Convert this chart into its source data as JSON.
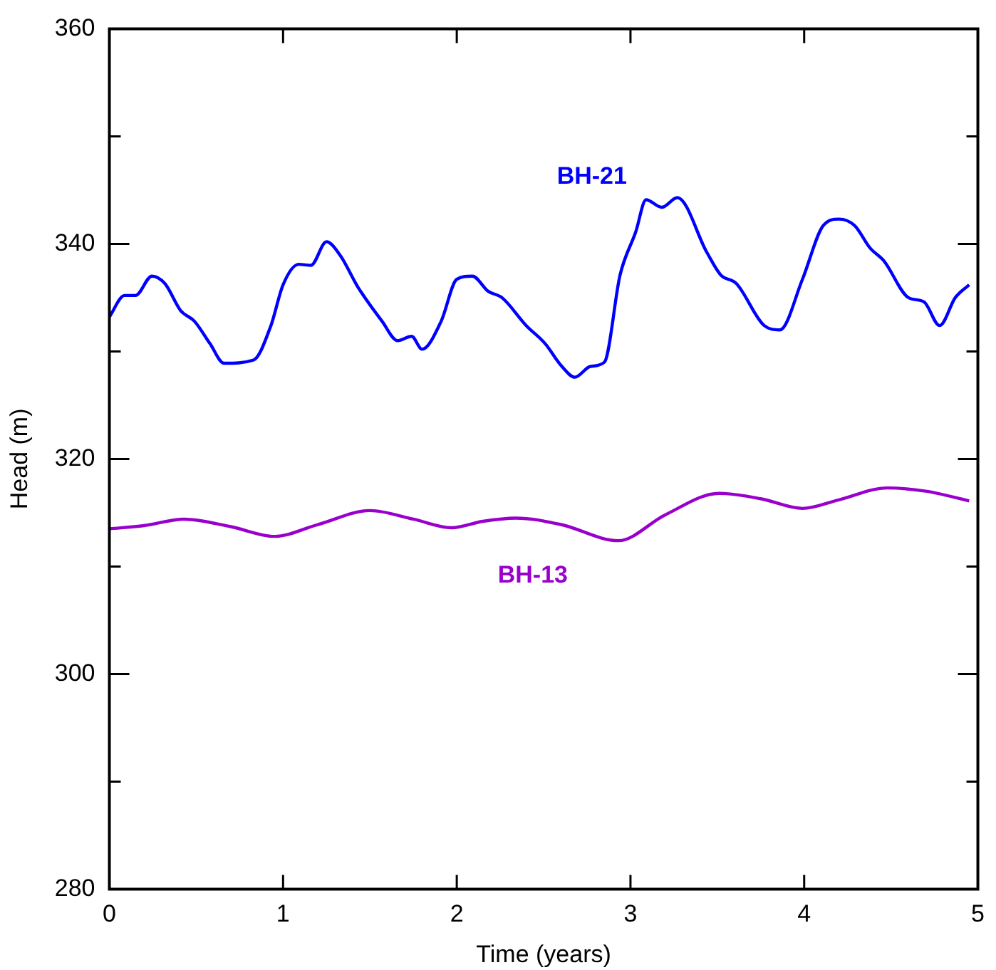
{
  "chart_data": {
    "type": "line",
    "xlabel": "Time (years)",
    "ylabel": "Head (m)",
    "xlim": [
      0,
      5
    ],
    "xticks": [
      0,
      1,
      2,
      3,
      4,
      5
    ],
    "ylim": [
      280,
      360
    ],
    "yticks": [
      280,
      {
        "value": 290,
        "label": null
      },
      300,
      {
        "value": 310,
        "label": null
      },
      320,
      {
        "value": 330,
        "label": null
      },
      340,
      {
        "value": 350,
        "label": null
      },
      360
    ],
    "grid": false,
    "legend": false,
    "marker": "none",
    "line_style": "solid",
    "series": [
      {
        "name": "BH-21",
        "color": "#0000ff",
        "x": [
          0,
          0.087,
          0.15,
          0.245,
          0.32,
          0.41,
          0.49,
          0.58,
          0.66,
          0.83,
          0.93,
          1.0,
          1.09,
          1.16,
          1.25,
          1.33,
          1.43,
          1.57,
          1.66,
          1.74,
          1.8,
          1.91,
          2.0,
          2.09,
          2.18,
          2.26,
          2.4,
          2.51,
          2.6,
          2.68,
          2.77,
          2.85,
          2.94,
          3.03,
          3.09,
          3.18,
          3.27,
          3.44,
          3.52,
          3.61,
          3.77,
          3.86,
          3.99,
          4.11,
          4.2,
          4.29,
          4.38,
          4.46,
          4.6,
          4.69,
          4.78,
          4.87,
          4.95
        ],
        "values": [
          333.2,
          335.2,
          335.2,
          337.0,
          336.3,
          333.8,
          332.8,
          330.7,
          328.9,
          329.2,
          332.4,
          336.2,
          338.1,
          338.0,
          340.2,
          338.9,
          336.0,
          332.8,
          331.0,
          331.4,
          330.2,
          332.8,
          336.7,
          337.0,
          335.6,
          335.0,
          332.4,
          330.7,
          328.7,
          327.6,
          328.6,
          329.0,
          337.1,
          341.1,
          344.1,
          343.4,
          344.3,
          339.2,
          337.1,
          336.3,
          332.4,
          332.0,
          336.7,
          341.7,
          342.3,
          341.7,
          339.6,
          338.4,
          335.0,
          334.6,
          332.4,
          335.0,
          336.2
        ]
      },
      {
        "name": "BH-13",
        "color": "#9900cc",
        "x": [
          0,
          0.2,
          0.43,
          0.7,
          0.95,
          1.2,
          1.5,
          1.75,
          1.97,
          2.15,
          2.34,
          2.6,
          2.93,
          3.2,
          3.51,
          3.75,
          3.99,
          4.2,
          4.48,
          4.7,
          4.95
        ],
        "values": [
          313.5,
          313.8,
          314.4,
          313.7,
          312.8,
          313.9,
          315.2,
          314.4,
          313.6,
          314.2,
          314.5,
          313.9,
          312.4,
          314.8,
          316.8,
          316.3,
          315.4,
          316.2,
          317.3,
          317.0,
          316.1
        ]
      }
    ]
  }
}
